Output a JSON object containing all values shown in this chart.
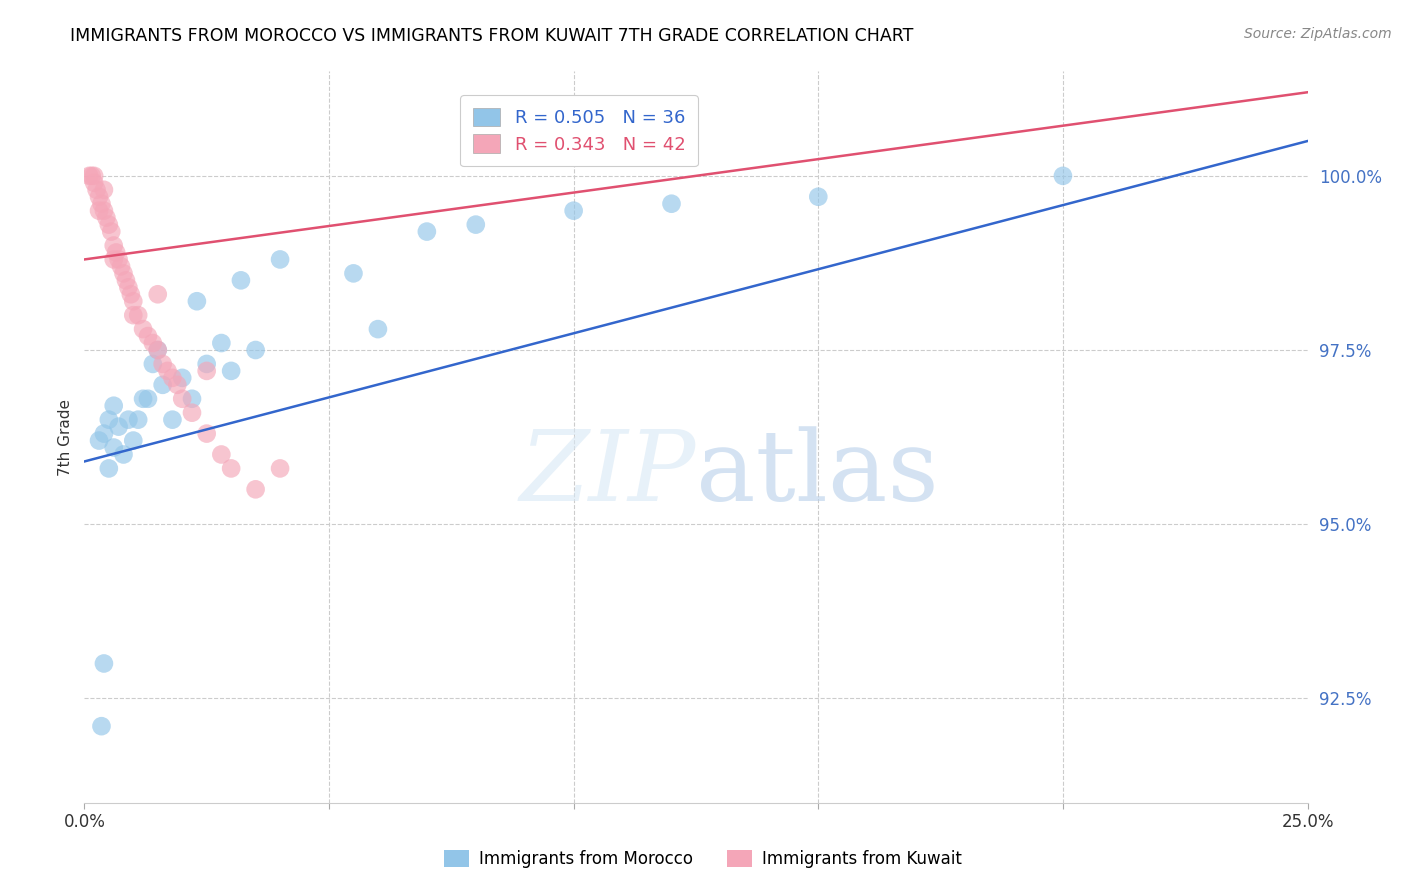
{
  "title": "IMMIGRANTS FROM MOROCCO VS IMMIGRANTS FROM KUWAIT 7TH GRADE CORRELATION CHART",
  "source": "Source: ZipAtlas.com",
  "ylabel": "7th Grade",
  "ytick_values": [
    92.5,
    95.0,
    97.5,
    100.0
  ],
  "xlim": [
    0.0,
    25.0
  ],
  "ylim": [
    91.0,
    101.5
  ],
  "label_blue": "Immigrants from Morocco",
  "label_pink": "Immigrants from Kuwait",
  "blue_color": "#92C5E8",
  "pink_color": "#F4A6B8",
  "trendline_blue": "#3366CC",
  "trendline_pink": "#E05070",
  "blue_scatter_x": [
    0.3,
    0.4,
    0.5,
    0.5,
    0.6,
    0.7,
    0.8,
    0.9,
    1.0,
    1.1,
    1.2,
    1.3,
    1.5,
    1.6,
    2.0,
    2.2,
    2.3,
    2.5,
    3.0,
    3.5,
    4.0,
    5.5,
    6.0,
    7.0,
    8.0,
    10.0,
    20.0,
    0.4,
    0.6,
    1.4,
    1.8,
    2.8,
    3.2,
    12.0,
    15.0,
    0.35
  ],
  "blue_scatter_y": [
    96.2,
    96.3,
    95.8,
    96.5,
    96.7,
    96.4,
    96.0,
    96.5,
    96.2,
    96.5,
    96.8,
    96.8,
    97.5,
    97.0,
    97.1,
    96.8,
    98.2,
    97.3,
    97.2,
    97.5,
    98.8,
    98.6,
    97.8,
    99.2,
    99.3,
    99.5,
    100.0,
    93.0,
    96.1,
    97.3,
    96.5,
    97.6,
    98.5,
    99.6,
    99.7,
    92.1
  ],
  "pink_scatter_x": [
    0.1,
    0.15,
    0.2,
    0.2,
    0.25,
    0.3,
    0.35,
    0.4,
    0.4,
    0.45,
    0.5,
    0.55,
    0.6,
    0.65,
    0.7,
    0.75,
    0.8,
    0.85,
    0.9,
    0.95,
    1.0,
    1.1,
    1.2,
    1.3,
    1.4,
    1.5,
    1.6,
    1.7,
    1.8,
    1.9,
    2.0,
    2.2,
    2.5,
    2.8,
    3.0,
    3.5,
    4.0,
    0.3,
    0.6,
    1.0,
    1.5,
    2.5
  ],
  "pink_scatter_y": [
    100.0,
    100.0,
    100.0,
    99.9,
    99.8,
    99.7,
    99.6,
    99.5,
    99.8,
    99.4,
    99.3,
    99.2,
    99.0,
    98.9,
    98.8,
    98.7,
    98.6,
    98.5,
    98.4,
    98.3,
    98.2,
    98.0,
    97.8,
    97.7,
    97.6,
    97.5,
    97.3,
    97.2,
    97.1,
    97.0,
    96.8,
    96.6,
    96.3,
    96.0,
    95.8,
    95.5,
    95.8,
    99.5,
    98.8,
    98.0,
    98.3,
    97.2
  ],
  "blue_trend_x0": 0.0,
  "blue_trend_x1": 25.0,
  "blue_trend_y0": 95.9,
  "blue_trend_y1": 100.5,
  "pink_trend_x0": 0.0,
  "pink_trend_x1": 25.0,
  "pink_trend_y0": 98.8,
  "pink_trend_y1": 101.2
}
